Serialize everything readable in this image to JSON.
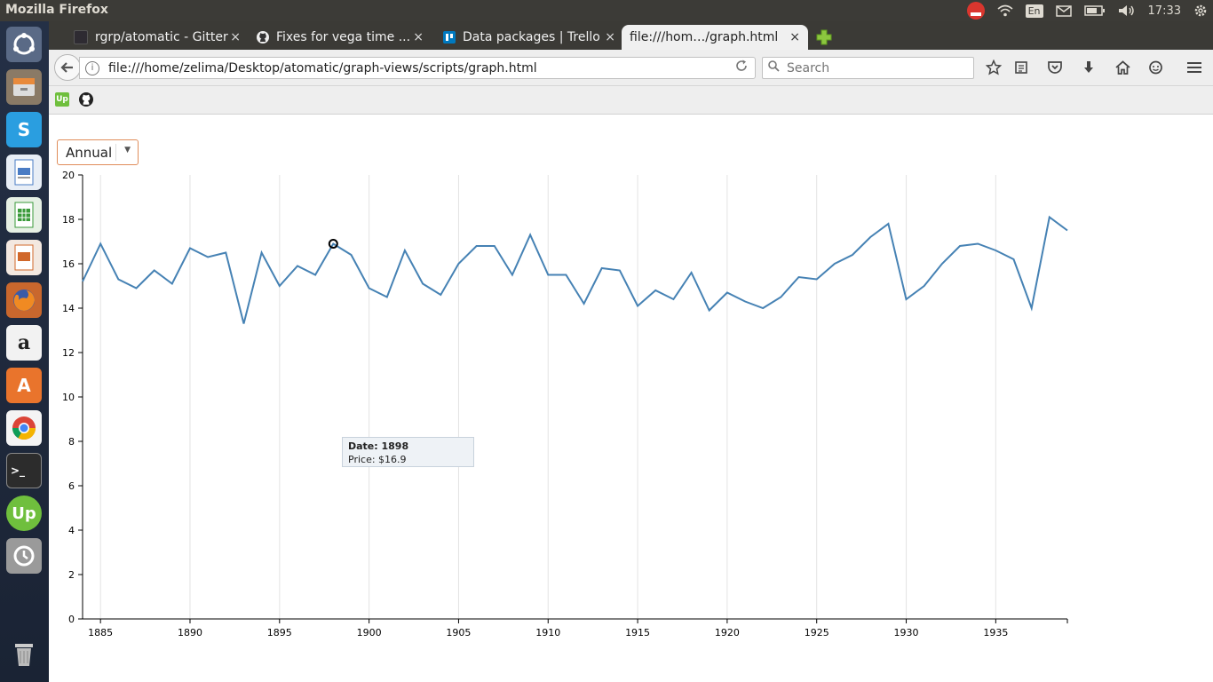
{
  "window": {
    "title": "Mozilla Firefox"
  },
  "panel": {
    "keyboard_layout": "En",
    "time": "17:33"
  },
  "launcher": {
    "items": [
      "ubuntu-dash",
      "files",
      "skype",
      "libreoffice-writer",
      "libreoffice-calc",
      "libreoffice-impress",
      "firefox",
      "amazon",
      "ubuntu-software-center",
      "chrome",
      "terminal",
      "upwork",
      "system-updates",
      "trash"
    ]
  },
  "tabs": [
    {
      "label": "rgrp/atomatic - Gitter",
      "close": "×"
    },
    {
      "label": "Fixes for vega time ...",
      "close": "×"
    },
    {
      "label": "Data packages | Trello",
      "close": "×"
    },
    {
      "label": "file:///hom…/graph.html",
      "close": "×",
      "active": true
    }
  ],
  "toolbar": {
    "url": "file:///home/zelima/Desktop/atomatic/graph-views/scripts/graph.html",
    "search_placeholder": "Search"
  },
  "page": {
    "period_select": {
      "value": "Annual"
    },
    "tooltip": {
      "date": "Date: 1898",
      "price": "Price: $16.9"
    }
  },
  "colors": {
    "line": "#4682b4",
    "select_border": "#e08d5b"
  },
  "chart_data": {
    "type": "line",
    "x": [
      1884,
      1885,
      1886,
      1887,
      1888,
      1889,
      1890,
      1891,
      1892,
      1893,
      1894,
      1895,
      1896,
      1897,
      1898,
      1899,
      1900,
      1901,
      1902,
      1903,
      1904,
      1905,
      1906,
      1907,
      1908,
      1909,
      1910,
      1911,
      1912,
      1913,
      1914,
      1915,
      1916,
      1917,
      1918,
      1919,
      1920,
      1921,
      1922,
      1923,
      1924,
      1925,
      1926,
      1927,
      1928,
      1929,
      1930,
      1931,
      1932,
      1933,
      1934,
      1935,
      1936,
      1937,
      1938,
      1939
    ],
    "values": [
      15.2,
      16.9,
      15.3,
      14.9,
      15.7,
      15.1,
      16.7,
      16.3,
      16.5,
      13.3,
      16.5,
      15.0,
      15.9,
      15.5,
      16.9,
      16.4,
      14.9,
      14.5,
      16.6,
      15.1,
      14.6,
      16.0,
      16.8,
      16.8,
      15.5,
      17.3,
      15.5,
      15.5,
      14.2,
      15.8,
      15.7,
      14.1,
      14.8,
      14.4,
      15.6,
      13.9,
      14.7,
      14.3,
      14.0,
      14.5,
      15.4,
      15.3,
      16.0,
      16.4,
      17.2,
      17.8,
      14.4,
      15.0,
      16.0,
      16.8,
      16.9,
      16.6,
      16.2,
      14.0,
      18.1,
      17.5
    ],
    "x_ticks": [
      1885,
      1890,
      1895,
      1900,
      1905,
      1910,
      1915,
      1920,
      1925,
      1930,
      1935
    ],
    "y_ticks": [
      0,
      2,
      4,
      6,
      8,
      10,
      12,
      14,
      16,
      18,
      20
    ],
    "ylim": [
      0,
      20
    ],
    "xlim": [
      1884,
      1939
    ],
    "grid": "vertical",
    "highlight": {
      "x": 1898,
      "y": 16.9
    }
  }
}
